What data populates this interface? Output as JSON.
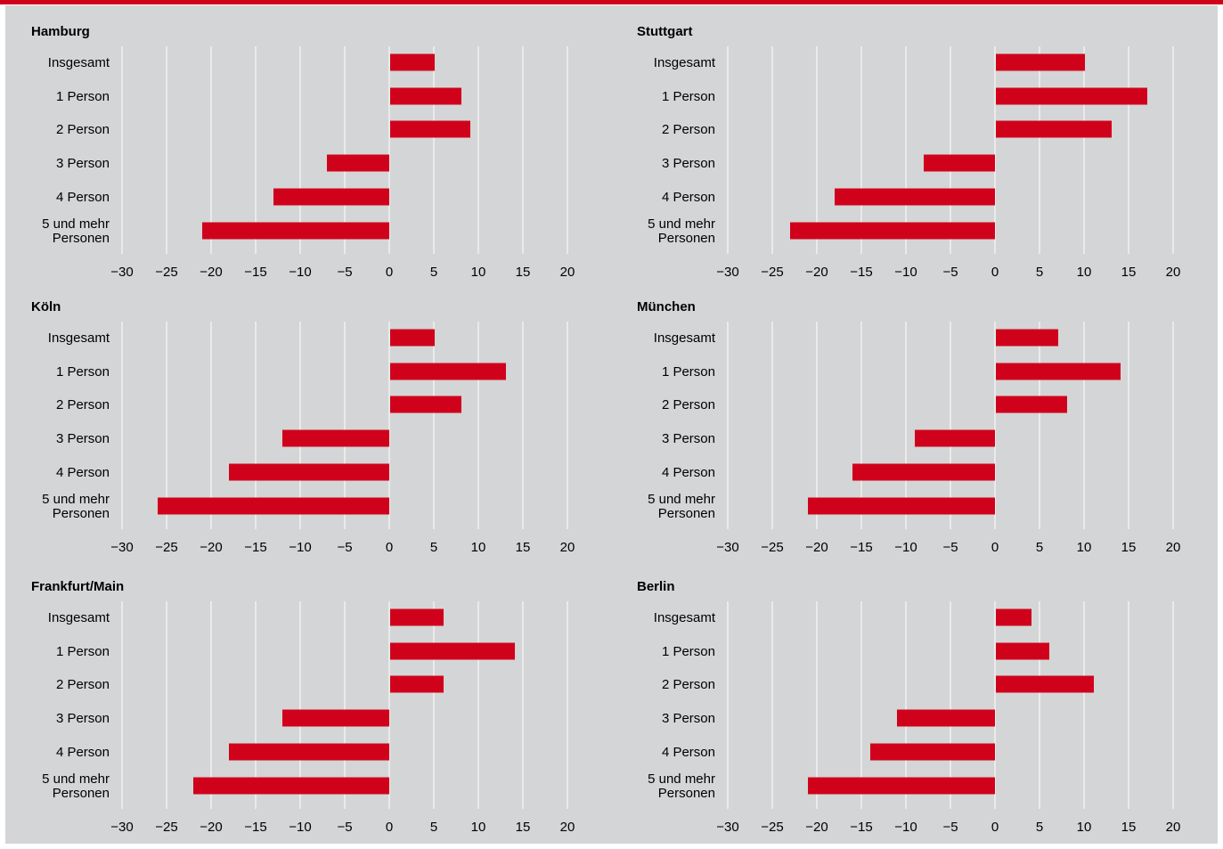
{
  "colors": {
    "bar": "#d0021b",
    "grid": "#ffffff",
    "background": "#d4d5d6",
    "rule": "#d0021b"
  },
  "chart_data": [
    {
      "type": "bar",
      "orientation": "horizontal",
      "title": "Hamburg",
      "categories": [
        "Insgesamt",
        "1 Person",
        "2 Person",
        "3 Person",
        "4 Person",
        "5 und mehr Personen"
      ],
      "category_lines": [
        [
          "Insgesamt"
        ],
        [
          "1 Person"
        ],
        [
          "2 Person"
        ],
        [
          "3 Person"
        ],
        [
          "4 Person"
        ],
        [
          "5 und mehr",
          "Personen"
        ]
      ],
      "values": [
        5,
        8,
        9,
        -7,
        -13,
        -21
      ],
      "xlim": [
        -30,
        20
      ],
      "xticks": [
        -30,
        -25,
        -20,
        -15,
        -10,
        -5,
        0,
        5,
        10,
        15,
        20
      ],
      "xtick_labels": [
        "−30",
        "−25",
        "−20",
        "−15",
        "−10",
        "−5",
        "0",
        "5",
        "10",
        "15",
        "20"
      ],
      "grid": true
    },
    {
      "type": "bar",
      "orientation": "horizontal",
      "title": "Stuttgart",
      "categories": [
        "Insgesamt",
        "1 Person",
        "2 Person",
        "3 Person",
        "4 Person",
        "5 und mehr Personen"
      ],
      "category_lines": [
        [
          "Insgesamt"
        ],
        [
          "1 Person"
        ],
        [
          "2 Person"
        ],
        [
          "3 Person"
        ],
        [
          "4 Person"
        ],
        [
          "5 und mehr",
          "Personen"
        ]
      ],
      "values": [
        10,
        17,
        13,
        -8,
        -18,
        -23
      ],
      "xlim": [
        -30,
        20
      ],
      "xticks": [
        -30,
        -25,
        -20,
        -15,
        -10,
        -5,
        0,
        5,
        10,
        15,
        20
      ],
      "xtick_labels": [
        "−30",
        "−25",
        "−20",
        "−15",
        "−10",
        "−5",
        "0",
        "5",
        "10",
        "15",
        "20"
      ],
      "grid": true
    },
    {
      "type": "bar",
      "orientation": "horizontal",
      "title": "Köln",
      "categories": [
        "Insgesamt",
        "1 Person",
        "2 Person",
        "3 Person",
        "4 Person",
        "5 und mehr Personen"
      ],
      "category_lines": [
        [
          "Insgesamt"
        ],
        [
          "1 Person"
        ],
        [
          "2 Person"
        ],
        [
          "3 Person"
        ],
        [
          "4 Person"
        ],
        [
          "5 und mehr",
          "Personen"
        ]
      ],
      "values": [
        5,
        13,
        8,
        -12,
        -18,
        -26
      ],
      "xlim": [
        -30,
        20
      ],
      "xticks": [
        -30,
        -25,
        -20,
        -15,
        -10,
        -5,
        0,
        5,
        10,
        15,
        20
      ],
      "xtick_labels": [
        "−30",
        "−25",
        "−20",
        "−15",
        "−10",
        "−5",
        "0",
        "5",
        "10",
        "15",
        "20"
      ],
      "grid": true
    },
    {
      "type": "bar",
      "orientation": "horizontal",
      "title": "München",
      "categories": [
        "Insgesamt",
        "1 Person",
        "2 Person",
        "3 Person",
        "4 Person",
        "5 und mehr Personen"
      ],
      "category_lines": [
        [
          "Insgesamt"
        ],
        [
          "1 Person"
        ],
        [
          "2 Person"
        ],
        [
          "3 Person"
        ],
        [
          "4 Person"
        ],
        [
          "5 und mehr",
          "Personen"
        ]
      ],
      "values": [
        7,
        14,
        8,
        -9,
        -16,
        -21
      ],
      "xlim": [
        -30,
        20
      ],
      "xticks": [
        -30,
        -25,
        -20,
        -15,
        -10,
        -5,
        0,
        5,
        10,
        15,
        20
      ],
      "xtick_labels": [
        "−30",
        "−25",
        "−20",
        "−15",
        "−10",
        "−5",
        "0",
        "5",
        "10",
        "15",
        "20"
      ],
      "grid": true
    },
    {
      "type": "bar",
      "orientation": "horizontal",
      "title": "Frankfurt/Main",
      "categories": [
        "Insgesamt",
        "1 Person",
        "2 Person",
        "3 Person",
        "4 Person",
        "5 und mehr Personen"
      ],
      "category_lines": [
        [
          "Insgesamt"
        ],
        [
          "1 Person"
        ],
        [
          "2 Person"
        ],
        [
          "3 Person"
        ],
        [
          "4 Person"
        ],
        [
          "5 und mehr",
          "Personen"
        ]
      ],
      "values": [
        6,
        14,
        6,
        -12,
        -18,
        -22
      ],
      "xlim": [
        -30,
        20
      ],
      "xticks": [
        -30,
        -25,
        -20,
        -15,
        -10,
        -5,
        0,
        5,
        10,
        15,
        20
      ],
      "xtick_labels": [
        "−30",
        "−25",
        "−20",
        "−15",
        "−10",
        "−5",
        "0",
        "5",
        "10",
        "15",
        "20"
      ],
      "grid": true
    },
    {
      "type": "bar",
      "orientation": "horizontal",
      "title": "Berlin",
      "categories": [
        "Insgesamt",
        "1 Person",
        "2 Person",
        "3 Person",
        "4 Person",
        "5 und mehr Personen"
      ],
      "category_lines": [
        [
          "Insgesamt"
        ],
        [
          "1 Person"
        ],
        [
          "2 Person"
        ],
        [
          "3 Person"
        ],
        [
          "4 Person"
        ],
        [
          "5 und mehr",
          "Personen"
        ]
      ],
      "values": [
        4,
        6,
        11,
        -11,
        -14,
        -21
      ],
      "xlim": [
        -30,
        20
      ],
      "xticks": [
        -30,
        -25,
        -20,
        -15,
        -10,
        -5,
        0,
        5,
        10,
        15,
        20
      ],
      "xtick_labels": [
        "−30",
        "−25",
        "−20",
        "−15",
        "−10",
        "−5",
        "0",
        "5",
        "10",
        "15",
        "20"
      ],
      "grid": true
    }
  ]
}
